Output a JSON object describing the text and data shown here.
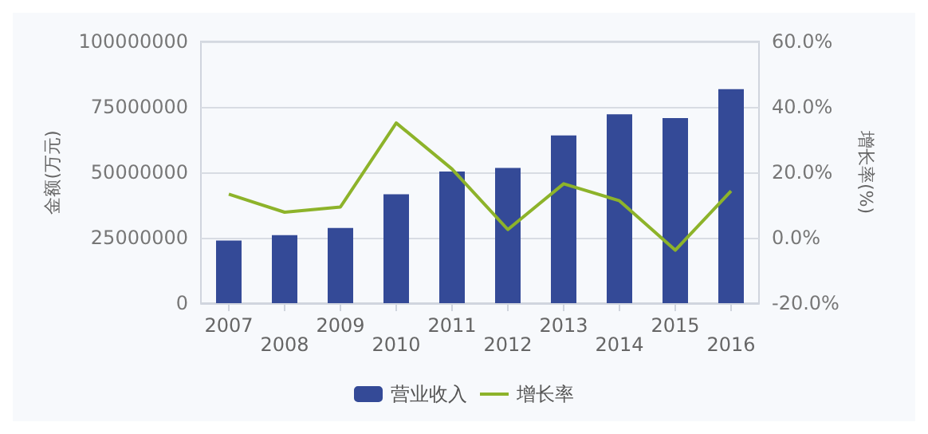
{
  "chart_data": {
    "type": "bar",
    "categories": [
      "2007",
      "2008",
      "2009",
      "2010",
      "2011",
      "2012",
      "2013",
      "2014",
      "2015",
      "2016"
    ],
    "series": [
      {
        "name": "营业收入",
        "color": "#344a97",
        "values": [
          23900000,
          26000000,
          28700000,
          41600000,
          50300000,
          51700000,
          64100000,
          72200000,
          70700000,
          81800000
        ]
      },
      {
        "name": "增长率",
        "type": "line",
        "axis": "y2",
        "color": "#8db32a",
        "values": [
          13.3,
          7.8,
          9.4,
          35.1,
          21,
          2.5,
          16.5,
          11.3,
          -3.8,
          14.3
        ]
      }
    ],
    "ylabel": "金额(万元)",
    "y2label": "增长率(%)",
    "ylim": [
      0,
      100000000
    ],
    "yticks": [
      0,
      25000000,
      50000000,
      75000000,
      100000000
    ],
    "y2lim": [
      -20,
      60
    ],
    "y2ticks": [
      {
        "value": -20,
        "label": "-20.0%"
      },
      {
        "value": 0,
        "label": "0.0%"
      },
      {
        "value": 20,
        "label": "20.0%"
      },
      {
        "value": 40,
        "label": "40.0%"
      },
      {
        "value": 60,
        "label": "60.0%"
      }
    ],
    "grid": "y",
    "legend": "bottom",
    "marker": "none",
    "line_style": "solid"
  }
}
